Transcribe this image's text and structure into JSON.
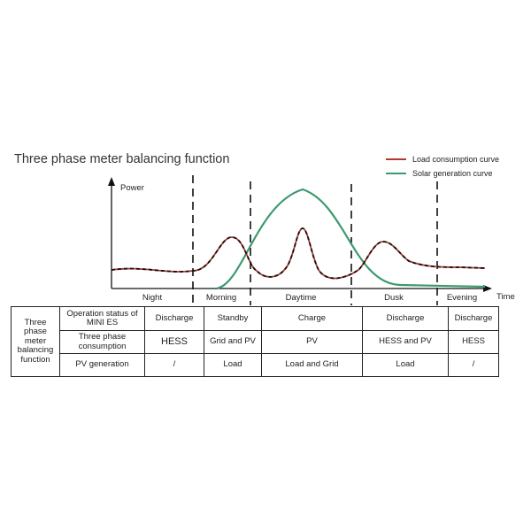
{
  "title": "Three phase meter balancing function",
  "legend": [
    {
      "label": "Load consumption curve",
      "color": "#b03a2e"
    },
    {
      "label": "Solar generation curve",
      "color": "#3c9a6e"
    }
  ],
  "axes": {
    "y_label": "Power",
    "x_label": "Time"
  },
  "periods": [
    "Night",
    "Morning",
    "Daytime",
    "Dusk",
    "Evening"
  ],
  "table": {
    "header": "Three phase meter balancing function",
    "rows": [
      {
        "label": "Operation status of MINI ES",
        "cells": [
          "Discharge",
          "Standby",
          "Charge",
          "Discharge",
          "Discharge"
        ]
      },
      {
        "label": "Three phase consumption",
        "cells": [
          "HESS",
          "Grid and PV",
          "PV",
          "HESS and PV",
          "HESS"
        ]
      },
      {
        "label": "PV generation",
        "cells": [
          "/",
          "Load",
          "Load and Grid",
          "Load",
          "/"
        ]
      }
    ]
  }
}
